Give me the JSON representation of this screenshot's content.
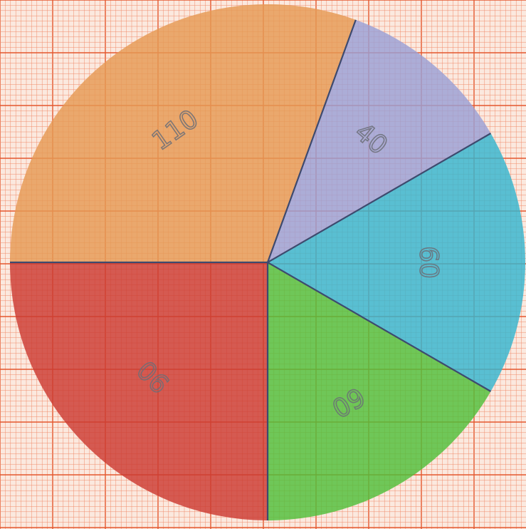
{
  "chart_data": {
    "type": "pie",
    "title": "",
    "slices": [
      {
        "value": 90,
        "label": "90",
        "color": "#cc3a32"
      },
      {
        "value": 110,
        "label": "110",
        "color": "#e59a54"
      },
      {
        "value": 40,
        "label": "40",
        "color": "#9aa0d6"
      },
      {
        "value": 60,
        "label": "60",
        "color": "#35b6cf"
      },
      {
        "value": 60,
        "label": "60",
        "color": "#4fbf3a"
      }
    ],
    "start_angle_deg": 90,
    "direction": "clockwise",
    "grid": true
  },
  "colors": {
    "paper": "#fbe9df",
    "grid_minor": "#f08a6a",
    "grid_major": "#e4572e",
    "outline": "#3e4a6e"
  }
}
